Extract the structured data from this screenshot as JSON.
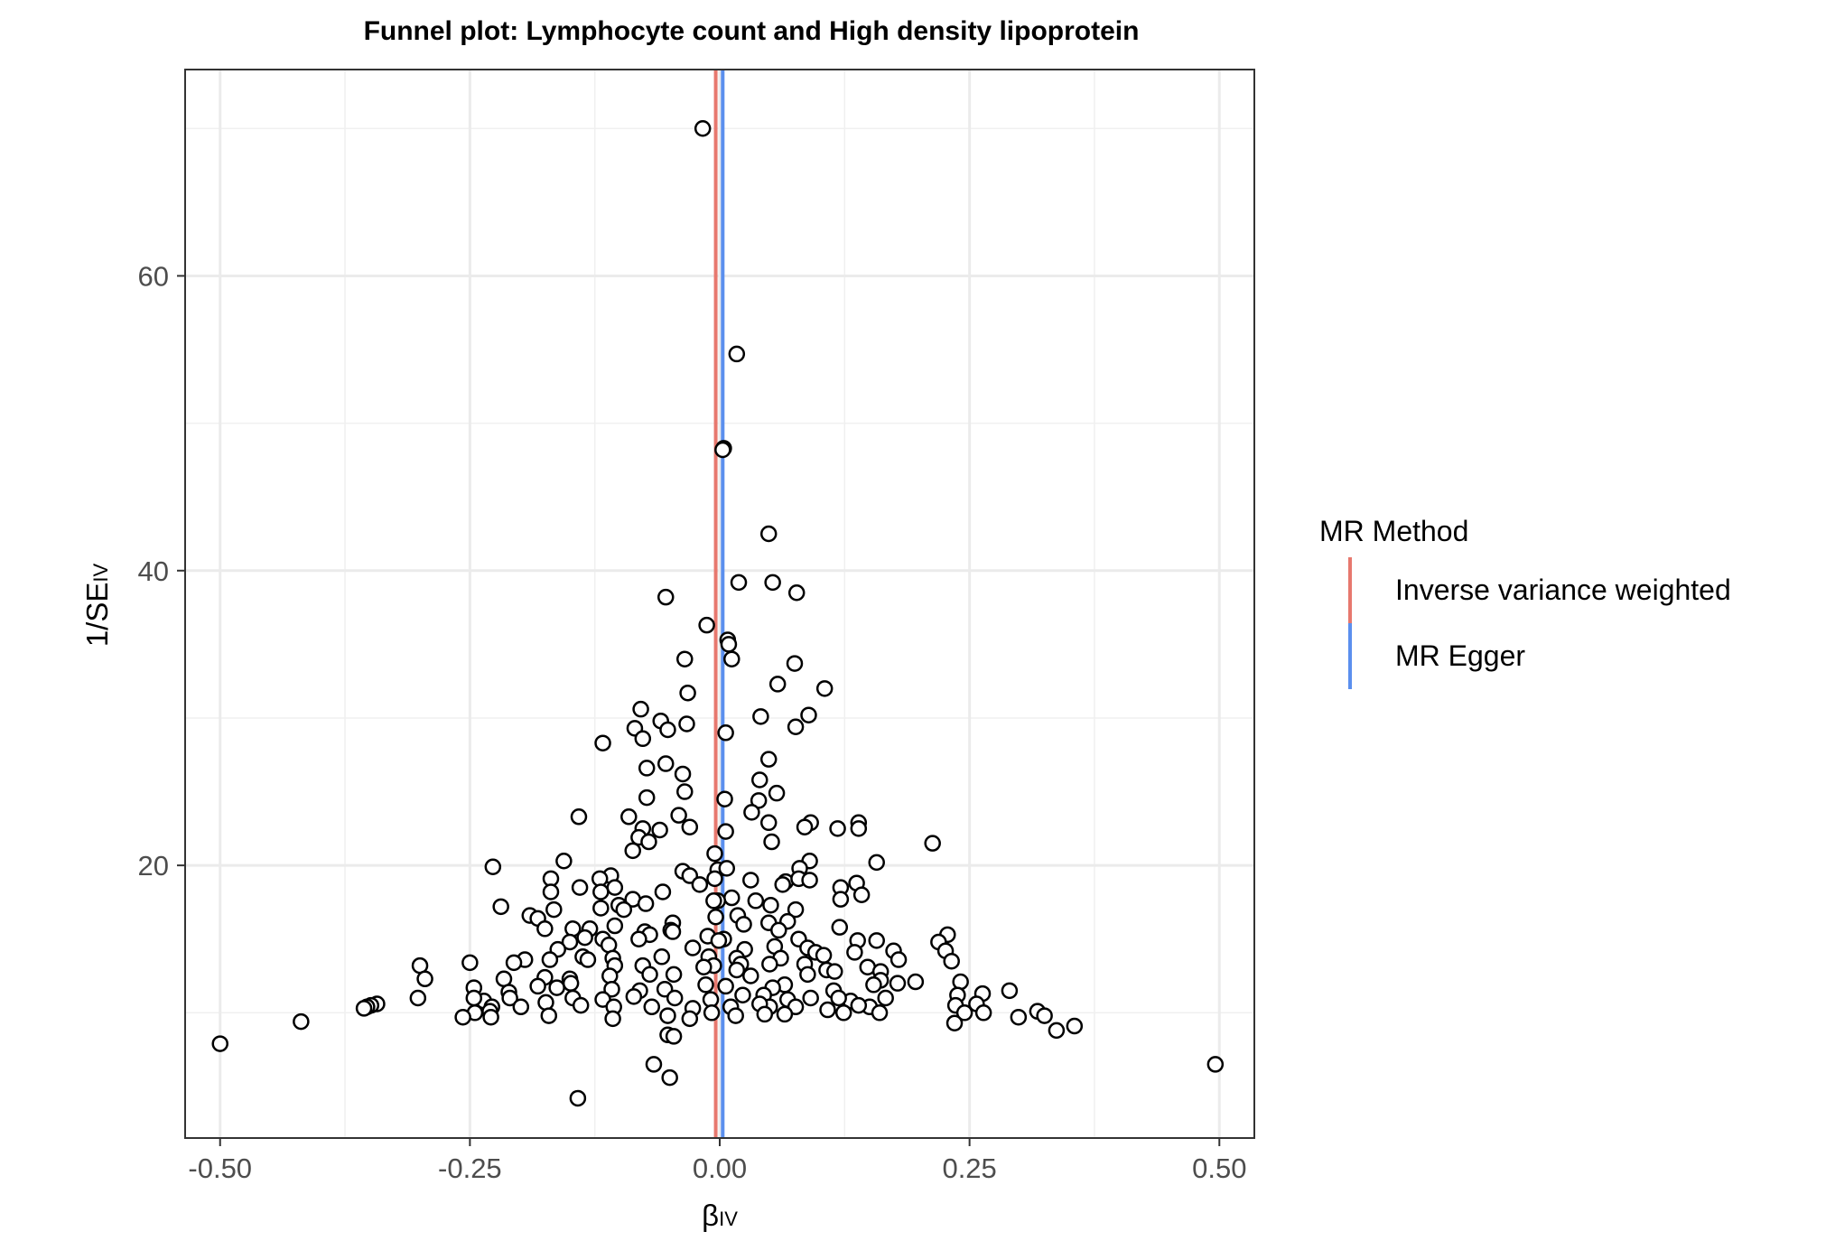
{
  "chart_data": {
    "type": "scatter",
    "title": "Funnel plot: Lymphocyte count and High density lipoprotein",
    "xlabel": {
      "main": "β",
      "sub": "IV"
    },
    "ylabel": {
      "main": "1/SE",
      "sub": "IV"
    },
    "xlim": [
      -0.535,
      0.535
    ],
    "ylim": [
      1.5,
      74
    ],
    "x_ticks": [
      -0.5,
      -0.25,
      0.0,
      0.25,
      0.5
    ],
    "x_tick_labels": [
      "-0.50",
      "-0.25",
      "0.00",
      "0.25",
      "0.50"
    ],
    "y_ticks": [
      20,
      40,
      60
    ],
    "y_tick_labels": [
      "20",
      "40",
      "60"
    ],
    "grid": true,
    "legend": {
      "title": "MR Method",
      "position": "right",
      "entries": [
        {
          "label": "Inverse variance weighted",
          "color": "#E7786E"
        },
        {
          "label": "MR Egger",
          "color": "#5B8FEE"
        }
      ]
    },
    "vlines": [
      {
        "method": "Inverse variance weighted",
        "x": -0.004,
        "color": "#E7786E"
      },
      {
        "method": "MR Egger",
        "x": 0.003,
        "color": "#5B8FEE"
      }
    ],
    "points": [
      [
        -0.017,
        70.0
      ],
      [
        0.017,
        54.7
      ],
      [
        0.004,
        48.3
      ],
      [
        0.003,
        48.2
      ],
      [
        0.049,
        42.5
      ],
      [
        0.019,
        39.2
      ],
      [
        0.053,
        39.2
      ],
      [
        0.077,
        38.5
      ],
      [
        -0.054,
        38.2
      ],
      [
        -0.013,
        36.3
      ],
      [
        0.008,
        35.3
      ],
      [
        0.009,
        35.0
      ],
      [
        0.012,
        34.0
      ],
      [
        -0.035,
        34.0
      ],
      [
        0.075,
        33.7
      ],
      [
        0.058,
        32.3
      ],
      [
        0.105,
        32.0
      ],
      [
        -0.032,
        31.7
      ],
      [
        -0.079,
        30.6
      ],
      [
        0.089,
        30.2
      ],
      [
        0.041,
        30.1
      ],
      [
        -0.059,
        29.8
      ],
      [
        -0.033,
        29.6
      ],
      [
        -0.085,
        29.3
      ],
      [
        -0.052,
        29.2
      ],
      [
        0.076,
        29.4
      ],
      [
        0.006,
        29.0
      ],
      [
        -0.077,
        28.6
      ],
      [
        -0.117,
        28.3
      ],
      [
        0.049,
        27.2
      ],
      [
        -0.054,
        26.9
      ],
      [
        -0.073,
        26.6
      ],
      [
        -0.037,
        26.2
      ],
      [
        0.04,
        25.8
      ],
      [
        0.057,
        24.9
      ],
      [
        -0.035,
        25.0
      ],
      [
        -0.073,
        24.6
      ],
      [
        0.005,
        24.5
      ],
      [
        0.039,
        24.4
      ],
      [
        -0.041,
        23.4
      ],
      [
        0.032,
        23.6
      ],
      [
        -0.091,
        23.3
      ],
      [
        -0.141,
        23.3
      ],
      [
        0.049,
        22.9
      ],
      [
        0.091,
        22.9
      ],
      [
        0.085,
        22.6
      ],
      [
        0.139,
        22.9
      ],
      [
        0.139,
        22.5
      ],
      [
        0.118,
        22.5
      ],
      [
        -0.077,
        22.5
      ],
      [
        -0.06,
        22.4
      ],
      [
        -0.03,
        22.6
      ],
      [
        0.006,
        22.3
      ],
      [
        -0.081,
        21.9
      ],
      [
        -0.071,
        21.6
      ],
      [
        0.052,
        21.6
      ],
      [
        0.213,
        21.5
      ],
      [
        -0.087,
        21.0
      ],
      [
        -0.005,
        20.8
      ],
      [
        0.09,
        20.3
      ],
      [
        0.157,
        20.2
      ],
      [
        -0.156,
        20.3
      ],
      [
        -0.227,
        19.9
      ],
      [
        -0.002,
        19.7
      ],
      [
        0.007,
        19.8
      ],
      [
        0.08,
        19.8
      ],
      [
        -0.037,
        19.6
      ],
      [
        -0.03,
        19.3
      ],
      [
        -0.005,
        19.1
      ],
      [
        -0.109,
        19.3
      ],
      [
        -0.12,
        19.1
      ],
      [
        -0.169,
        19.1
      ],
      [
        0.031,
        19.0
      ],
      [
        0.066,
        18.9
      ],
      [
        0.079,
        19.1
      ],
      [
        0.09,
        19.0
      ],
      [
        0.063,
        18.7
      ],
      [
        0.137,
        18.8
      ],
      [
        -0.02,
        18.7
      ],
      [
        -0.105,
        18.5
      ],
      [
        -0.14,
        18.5
      ],
      [
        -0.169,
        18.2
      ],
      [
        0.121,
        18.5
      ],
      [
        -0.119,
        18.2
      ],
      [
        -0.057,
        18.2
      ],
      [
        0.142,
        18.0
      ],
      [
        0.121,
        17.7
      ],
      [
        0.012,
        17.8
      ],
      [
        -0.087,
        17.7
      ],
      [
        -0.074,
        17.4
      ],
      [
        -0.002,
        17.6
      ],
      [
        -0.006,
        17.6
      ],
      [
        0.036,
        17.6
      ],
      [
        0.051,
        17.3
      ],
      [
        0.076,
        17.0
      ],
      [
        -0.101,
        17.3
      ],
      [
        -0.119,
        17.1
      ],
      [
        -0.096,
        17.0
      ],
      [
        -0.219,
        17.2
      ],
      [
        -0.166,
        17.0
      ],
      [
        -0.19,
        16.6
      ],
      [
        -0.182,
        16.4
      ],
      [
        0.018,
        16.6
      ],
      [
        0.068,
        16.2
      ],
      [
        -0.004,
        16.5
      ],
      [
        0.024,
        16.0
      ],
      [
        0.049,
        16.1
      ],
      [
        -0.047,
        16.1
      ],
      [
        -0.105,
        15.9
      ],
      [
        -0.147,
        15.7
      ],
      [
        -0.13,
        15.7
      ],
      [
        -0.175,
        15.7
      ],
      [
        0.12,
        15.8
      ],
      [
        0.059,
        15.6
      ],
      [
        -0.049,
        15.6
      ],
      [
        -0.075,
        15.5
      ],
      [
        -0.07,
        15.3
      ],
      [
        0.228,
        15.3
      ],
      [
        0.079,
        15.0
      ],
      [
        0.004,
        15.0
      ],
      [
        -0.012,
        15.2
      ],
      [
        -0.047,
        15.5
      ],
      [
        -0.081,
        15.0
      ],
      [
        -0.117,
        15.0
      ],
      [
        -0.135,
        15.1
      ],
      [
        -0.15,
        14.8
      ],
      [
        0.157,
        14.9
      ],
      [
        0.138,
        14.9
      ],
      [
        0.219,
        14.8
      ],
      [
        0.088,
        14.4
      ],
      [
        -0.001,
        14.9
      ],
      [
        0.055,
        14.5
      ],
      [
        0.025,
        14.3
      ],
      [
        -0.027,
        14.4
      ],
      [
        -0.111,
        14.6
      ],
      [
        -0.162,
        14.3
      ],
      [
        0.174,
        14.2
      ],
      [
        0.226,
        14.2
      ],
      [
        0.096,
        14.1
      ],
      [
        0.135,
        14.1
      ],
      [
        0.104,
        13.9
      ],
      [
        0.061,
        13.7
      ],
      [
        0.017,
        13.7
      ],
      [
        -0.011,
        13.8
      ],
      [
        -0.058,
        13.8
      ],
      [
        -0.137,
        13.8
      ],
      [
        -0.132,
        13.6
      ],
      [
        -0.107,
        13.7
      ],
      [
        -0.17,
        13.6
      ],
      [
        -0.195,
        13.6
      ],
      [
        -0.206,
        13.4
      ],
      [
        0.232,
        13.5
      ],
      [
        0.179,
        13.6
      ],
      [
        0.085,
        13.3
      ],
      [
        0.05,
        13.3
      ],
      [
        0.021,
        13.3
      ],
      [
        -0.006,
        13.2
      ],
      [
        -0.016,
        13.1
      ],
      [
        -0.077,
        13.2
      ],
      [
        -0.105,
        13.2
      ],
      [
        -0.25,
        13.4
      ],
      [
        -0.3,
        13.2
      ],
      [
        0.148,
        13.1
      ],
      [
        0.161,
        12.8
      ],
      [
        0.107,
        12.9
      ],
      [
        0.115,
        12.8
      ],
      [
        0.088,
        12.6
      ],
      [
        0.031,
        12.5
      ],
      [
        0.017,
        12.9
      ],
      [
        -0.046,
        12.6
      ],
      [
        -0.07,
        12.6
      ],
      [
        -0.11,
        12.5
      ],
      [
        -0.15,
        12.3
      ],
      [
        -0.175,
        12.4
      ],
      [
        -0.216,
        12.3
      ],
      [
        0.196,
        12.1
      ],
      [
        0.161,
        12.2
      ],
      [
        0.178,
        12.0
      ],
      [
        0.241,
        12.1
      ],
      [
        0.154,
        11.9
      ],
      [
        0.114,
        11.5
      ],
      [
        0.065,
        11.9
      ],
      [
        0.053,
        11.7
      ],
      [
        0.006,
        11.8
      ],
      [
        -0.014,
        11.9
      ],
      [
        -0.055,
        11.6
      ],
      [
        -0.08,
        11.5
      ],
      [
        -0.108,
        11.6
      ],
      [
        -0.149,
        12.0
      ],
      [
        -0.163,
        11.7
      ],
      [
        -0.182,
        11.8
      ],
      [
        -0.211,
        11.4
      ],
      [
        -0.246,
        11.7
      ],
      [
        -0.295,
        12.3
      ],
      [
        0.29,
        11.5
      ],
      [
        0.263,
        11.3
      ],
      [
        0.238,
        11.2
      ],
      [
        0.166,
        11.0
      ],
      [
        0.131,
        10.8
      ],
      [
        0.119,
        11.0
      ],
      [
        0.091,
        11.0
      ],
      [
        0.068,
        10.9
      ],
      [
        0.044,
        11.2
      ],
      [
        0.023,
        11.2
      ],
      [
        -0.009,
        10.9
      ],
      [
        -0.045,
        11.0
      ],
      [
        -0.086,
        11.1
      ],
      [
        -0.117,
        10.9
      ],
      [
        -0.147,
        11.0
      ],
      [
        -0.174,
        10.7
      ],
      [
        -0.21,
        11.0
      ],
      [
        -0.236,
        10.8
      ],
      [
        -0.246,
        11.0
      ],
      [
        -0.302,
        11.0
      ],
      [
        0.257,
        10.6
      ],
      [
        0.236,
        10.5
      ],
      [
        0.15,
        10.4
      ],
      [
        0.139,
        10.5
      ],
      [
        0.108,
        10.2
      ],
      [
        0.076,
        10.4
      ],
      [
        0.05,
        10.4
      ],
      [
        0.04,
        10.6
      ],
      [
        0.011,
        10.4
      ],
      [
        -0.027,
        10.3
      ],
      [
        -0.068,
        10.4
      ],
      [
        -0.106,
        10.4
      ],
      [
        -0.139,
        10.5
      ],
      [
        -0.199,
        10.4
      ],
      [
        -0.228,
        10.4
      ],
      [
        -0.23,
        10.1
      ],
      [
        -0.245,
        10.0
      ],
      [
        -0.343,
        10.6
      ],
      [
        -0.349,
        10.5
      ],
      [
        -0.353,
        10.4
      ],
      [
        -0.356,
        10.3
      ],
      [
        0.264,
        10.0
      ],
      [
        0.245,
        10.0
      ],
      [
        0.16,
        10.0
      ],
      [
        0.124,
        10.0
      ],
      [
        0.065,
        9.9
      ],
      [
        0.045,
        9.9
      ],
      [
        0.016,
        9.8
      ],
      [
        -0.008,
        10.0
      ],
      [
        -0.03,
        9.6
      ],
      [
        -0.052,
        9.8
      ],
      [
        -0.107,
        9.6
      ],
      [
        -0.171,
        9.8
      ],
      [
        -0.229,
        9.7
      ],
      [
        -0.257,
        9.7
      ],
      [
        0.318,
        10.1
      ],
      [
        0.325,
        9.8
      ],
      [
        0.299,
        9.7
      ],
      [
        0.235,
        9.3
      ],
      [
        0.355,
        9.1
      ],
      [
        0.337,
        8.8
      ],
      [
        -0.419,
        9.4
      ],
      [
        -0.052,
        8.5
      ],
      [
        -0.046,
        8.4
      ],
      [
        -0.5,
        7.9
      ],
      [
        -0.066,
        6.5
      ],
      [
        -0.05,
        5.6
      ],
      [
        0.496,
        6.5
      ],
      [
        -0.142,
        4.2
      ]
    ]
  }
}
